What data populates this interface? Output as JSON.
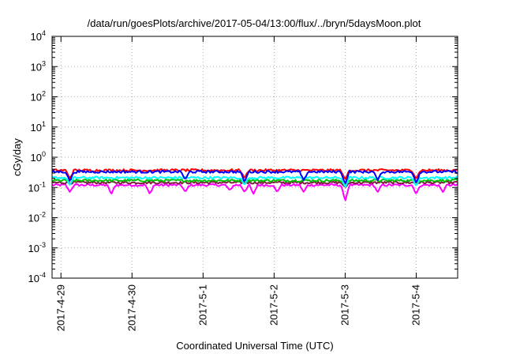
{
  "chart_data": {
    "type": "line",
    "title": "/data/run/goesPlots/archive/2017-05-04/13:00/flux/../bryn/5daysMoon.plot",
    "xlabel": "Coordinated Universal Time (UTC)",
    "ylabel": "cGy/day",
    "yscale": "log",
    "ylim": [
      0.0001,
      10000
    ],
    "xlim": [
      "2017-04-28 21:00",
      "2017-05-04 14:00"
    ],
    "grid": true,
    "x_ticks": [
      "2017-4-29",
      "2017-4-30",
      "2017-5-1",
      "2017-5-2",
      "2017-5-3",
      "2017-5-4"
    ],
    "y_ticks": [
      {
        "base": "10",
        "exp": "4"
      },
      {
        "base": "10",
        "exp": "3"
      },
      {
        "base": "10",
        "exp": "2"
      },
      {
        "base": "10",
        "exp": "1"
      },
      {
        "base": "10",
        "exp": "0"
      },
      {
        "base": "10",
        "exp": "-1"
      },
      {
        "base": "10",
        "exp": "-2"
      },
      {
        "base": "10",
        "exp": "-3"
      },
      {
        "base": "10",
        "exp": "-4"
      }
    ],
    "series": [
      {
        "color": "#ff00ff",
        "base": 0.12,
        "dips": [
          [
            "2017-04-29 03:00",
            0.07
          ],
          [
            "2017-04-29 17:00",
            0.06
          ],
          [
            "2017-04-30 06:00",
            0.06
          ],
          [
            "2017-04-30 18:00",
            0.07
          ],
          [
            "2017-05-01 09:00",
            0.08
          ],
          [
            "2017-05-01 14:00",
            0.07
          ],
          [
            "2017-05-01 17:00",
            0.06
          ],
          [
            "2017-05-02 01:00",
            0.07
          ],
          [
            "2017-05-02 10:00",
            0.07
          ],
          [
            "2017-05-03 00:00",
            0.035
          ],
          [
            "2017-05-03 11:00",
            0.07
          ],
          [
            "2017-05-04 00:00",
            0.06
          ],
          [
            "2017-05-04 09:00",
            0.07
          ]
        ]
      },
      {
        "color": "#7f1f3f",
        "base": 0.145,
        "dips": [
          [
            "2017-05-03 00:00",
            0.1
          ]
        ]
      },
      {
        "color": "#00bf00",
        "base": 0.17,
        "dips": [
          [
            "2017-05-03 00:00",
            0.12
          ]
        ]
      },
      {
        "color": "#00ffff",
        "base": 0.21,
        "dips": [
          [
            "2017-04-29 03:00",
            0.12
          ],
          [
            "2017-05-01 14:00",
            0.12
          ],
          [
            "2017-05-03 00:00",
            0.1
          ],
          [
            "2017-05-04 00:00",
            0.11
          ]
        ]
      },
      {
        "color": "#ff0000",
        "base": 0.37,
        "dips": [
          [
            "2017-04-29 03:00",
            0.2
          ],
          [
            "2017-05-01 14:00",
            0.2
          ],
          [
            "2017-05-03 00:00",
            0.18
          ],
          [
            "2017-05-04 00:00",
            0.19
          ]
        ]
      },
      {
        "color": "#0000ff",
        "base": 0.33,
        "dips": [
          [
            "2017-04-29 03:00",
            0.16
          ],
          [
            "2017-04-30 18:00",
            0.18
          ],
          [
            "2017-05-01 14:00",
            0.15
          ],
          [
            "2017-05-02 10:00",
            0.17
          ],
          [
            "2017-05-03 00:00",
            0.13
          ],
          [
            "2017-05-03 11:00",
            0.17
          ],
          [
            "2017-05-04 00:00",
            0.14
          ]
        ]
      }
    ]
  }
}
